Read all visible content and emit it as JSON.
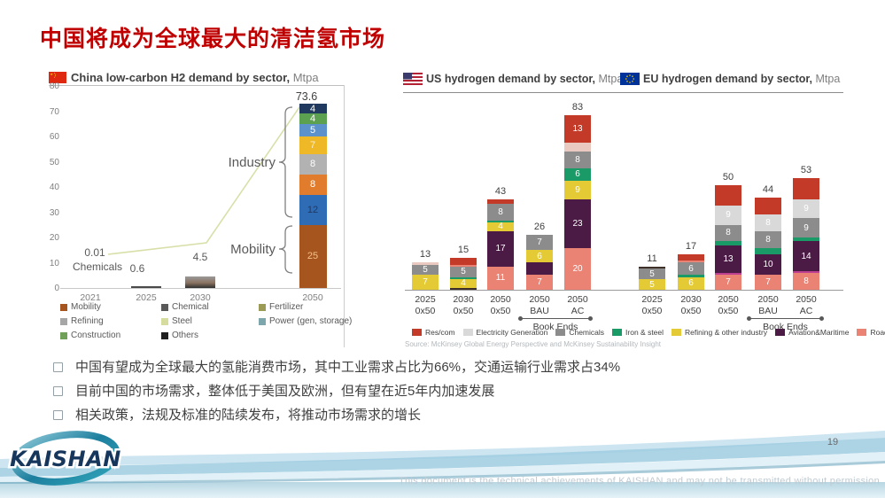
{
  "slide": {
    "title": "中国将成为全球最大的清洁氢市场",
    "page_number": "19",
    "footer_note": "This document is the technical achievements of KAISHAN and may not be transmitted without permission",
    "logo_text": "KAISHAN"
  },
  "bullets": {
    "items": [
      "中国有望成为全球最大的氢能消费市场，其中工业需求占比为66%，交通运输行业需求占34%",
      "目前中国的市场需求，整体低于美国及欧洲，但有望在近5年内加速发展",
      "相关政策，法规及标准的陆续发布，将推动市场需求的增长"
    ]
  },
  "chart_data": [
    {
      "id": "china",
      "type": "bar",
      "title": "China low-carbon H2 demand by sector,",
      "unit": "Mtpa",
      "categories": [
        "2021",
        "2025",
        "2030",
        "2050"
      ],
      "totals": [
        0.01,
        0.6,
        4.5,
        73.6
      ],
      "ylim": [
        0,
        80
      ],
      "yticks": [
        0,
        10,
        20,
        30,
        40,
        50,
        60,
        70,
        80
      ],
      "grid": "off",
      "annotations": {
        "v2021": "0.01",
        "chemicals": "Chemicals",
        "v2025": "0.6",
        "v2030": "4.5",
        "v2050": "73.6",
        "industry": "Industry",
        "mobility": "Mobility"
      },
      "stack_2050_bottom_to_top": [
        {
          "v": 25,
          "c": "#a5551d",
          "l": "25",
          "lc": "#f7c08b"
        },
        {
          "v": 12,
          "c": "#2e6cb5",
          "l": "12",
          "lc": "#1f3864"
        },
        {
          "v": 8,
          "c": "#e07c2c",
          "l": "8"
        },
        {
          "v": 8,
          "c": "#b2b2b2",
          "l": "8"
        },
        {
          "v": 7,
          "c": "#efb827",
          "l": "7",
          "lc": "#fdeec8"
        },
        {
          "v": 5,
          "c": "#5b92cc",
          "l": "5"
        },
        {
          "v": 4,
          "c": "#5ba150",
          "l": "4"
        },
        {
          "v": 4,
          "c": "#20395f",
          "l": "4"
        }
      ],
      "legend": [
        {
          "label": "Mobility",
          "color": "#a5551d"
        },
        {
          "label": "Chemical",
          "color": "#595959"
        },
        {
          "label": "Fertilizer",
          "color": "#9c9b55"
        },
        {
          "label": "Refining",
          "color": "#a6a6a6"
        },
        {
          "label": "Steel",
          "color": "#d6dc9e"
        },
        {
          "label": "Power (gen, storage)",
          "color": "#7ea6ad"
        },
        {
          "label": "Construction",
          "color": "#71a158"
        },
        {
          "label": "Others",
          "color": "#1f1f1f"
        }
      ]
    },
    {
      "id": "us",
      "type": "stacked_bar",
      "title": "US hydrogen demand by sector,",
      "unit": "Mtpa",
      "book_ends": "Book Ends",
      "palette": {
        "red": "#c33b28",
        "lightgray": "#d9d9d9",
        "gray": "#8c8c8c",
        "green": "#1a9a66",
        "yellow": "#e4cb36",
        "purple": "#4c1b45",
        "salmon": "#ea8374",
        "dark": "#40302a",
        "magenta": "#bc3f92",
        "pink": "#eac9c0"
      },
      "categories": [
        [
          "2025",
          "0x50"
        ],
        [
          "2030",
          "0x50"
        ],
        [
          "2050",
          "0x50"
        ],
        [
          "2050",
          "BAU"
        ],
        [
          "2050",
          "AC"
        ]
      ],
      "bars": [
        {
          "total": 13,
          "segments": [
            {
              "v": 7,
              "c": "yellow",
              "l": "7"
            },
            {
              "v": 5,
              "c": "gray",
              "l": "5"
            },
            {
              "v": 1,
              "c": "pink"
            }
          ]
        },
        {
          "total": 15,
          "segments": [
            {
              "v": 1,
              "c": "dark"
            },
            {
              "v": 4,
              "c": "yellow",
              "l": "4"
            },
            {
              "v": 1,
              "c": "green"
            },
            {
              "v": 5,
              "c": "gray",
              "l": "5"
            },
            {
              "v": 1,
              "c": "salmon"
            },
            {
              "v": 3,
              "c": "red"
            }
          ]
        },
        {
          "total": 43,
          "segments": [
            {
              "v": 11,
              "c": "salmon",
              "l": "11"
            },
            {
              "v": 17,
              "c": "purple",
              "l": "17"
            },
            {
              "v": 4,
              "c": "yellow",
              "l": "4"
            },
            {
              "v": 1,
              "c": "green"
            },
            {
              "v": 8,
              "c": "gray",
              "l": "8"
            },
            {
              "v": 2,
              "c": "red"
            }
          ]
        },
        {
          "total": 26,
          "segments": [
            {
              "v": 7,
              "c": "salmon",
              "l": "7"
            },
            {
              "v": 6,
              "c": "purple"
            },
            {
              "v": 6,
              "c": "yellow",
              "l": "6"
            },
            {
              "v": 7,
              "c": "gray",
              "l": "7"
            }
          ]
        },
        {
          "total": 83,
          "segments": [
            {
              "v": 20,
              "c": "salmon",
              "l": "20"
            },
            {
              "v": 23,
              "c": "purple",
              "l": "23"
            },
            {
              "v": 9,
              "c": "yellow",
              "l": "9"
            },
            {
              "v": 6,
              "c": "green",
              "l": "6"
            },
            {
              "v": 8,
              "c": "gray",
              "l": "8"
            },
            {
              "v": 4,
              "c": "pink"
            },
            {
              "v": 13,
              "c": "red",
              "l": "13"
            }
          ]
        }
      ],
      "legend": [
        {
          "label": "Res/com",
          "color": "#c33b28"
        },
        {
          "label": "Electricity Generation",
          "color": "#d9d9d9"
        },
        {
          "label": "Chemicals",
          "color": "#8c8c8c"
        },
        {
          "label": "Iron & steel",
          "color": "#1a9a66"
        },
        {
          "label": "Refining & other industry",
          "color": "#e4cb36"
        },
        {
          "label": "Aviation&Maritime",
          "color": "#4c1b45"
        },
        {
          "label": "Road transport",
          "color": "#ea8374"
        }
      ],
      "source": "Source: McKinsey Global Energy Perspective and McKinsey Sustainability Insight"
    },
    {
      "id": "eu",
      "type": "stacked_bar",
      "title": "EU hydrogen demand by sector,",
      "unit": "Mtpa",
      "book_ends": "Book Ends",
      "categories": [
        [
          "2025",
          "0x50"
        ],
        [
          "2030",
          "0x50"
        ],
        [
          "2050",
          "0x50"
        ],
        [
          "2050",
          "BAU"
        ],
        [
          "2050",
          "AC"
        ]
      ],
      "bars": [
        {
          "total": 11,
          "segments": [
            {
              "v": 5,
              "c": "yellow",
              "l": "5"
            },
            {
              "v": 5,
              "c": "gray",
              "l": "5"
            },
            {
              "v": 1,
              "c": "dark"
            }
          ]
        },
        {
          "total": 17,
          "segments": [
            {
              "v": 6,
              "c": "yellow",
              "l": "6"
            },
            {
              "v": 1,
              "c": "green"
            },
            {
              "v": 6,
              "c": "gray",
              "l": "6"
            },
            {
              "v": 1,
              "c": "salmon"
            },
            {
              "v": 3,
              "c": "red"
            }
          ]
        },
        {
          "total": 50,
          "segments": [
            {
              "v": 7,
              "c": "salmon",
              "l": "7"
            },
            {
              "v": 1,
              "c": "magenta"
            },
            {
              "v": 13,
              "c": "purple",
              "l": "13"
            },
            {
              "v": 2,
              "c": "green"
            },
            {
              "v": 8,
              "c": "gray",
              "l": "8"
            },
            {
              "v": 9,
              "c": "lightgray",
              "l": "9"
            },
            {
              "v": 10,
              "c": "red"
            }
          ]
        },
        {
          "total": 44,
          "segments": [
            {
              "v": 7,
              "c": "salmon",
              "l": "7"
            },
            {
              "v": 10,
              "c": "purple",
              "l": "10"
            },
            {
              "v": 3,
              "c": "green"
            },
            {
              "v": 8,
              "c": "gray",
              "l": "8"
            },
            {
              "v": 8,
              "c": "lightgray",
              "l": "8"
            },
            {
              "v": 8,
              "c": "red"
            }
          ]
        },
        {
          "total": 53,
          "segments": [
            {
              "v": 8,
              "c": "salmon",
              "l": "8"
            },
            {
              "v": 1,
              "c": "magenta"
            },
            {
              "v": 14,
              "c": "purple",
              "l": "14"
            },
            {
              "v": 2,
              "c": "green"
            },
            {
              "v": 9,
              "c": "gray",
              "l": "9"
            },
            {
              "v": 9,
              "c": "lightgray",
              "l": "9"
            },
            {
              "v": 10,
              "c": "red"
            }
          ]
        }
      ]
    }
  ]
}
